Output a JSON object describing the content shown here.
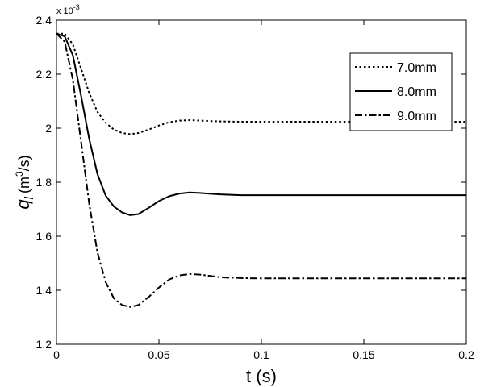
{
  "chart_data": {
    "type": "line",
    "xlabel": "t (s)",
    "ylabel_symbol": "q",
    "ylabel_sub": "l",
    "ylabel_unit_open": "(m",
    "ylabel_unit_sup": "3",
    "ylabel_unit_close": "/s)",
    "y_multiplier": "x 10",
    "y_multiplier_exp": "-3",
    "xlim": [
      0,
      0.2
    ],
    "ylim": [
      1.2,
      2.4
    ],
    "x_ticks": [
      0,
      0.05,
      0.1,
      0.15,
      0.2
    ],
    "x_tick_labels": [
      "0",
      "0.05",
      "0.1",
      "0.15",
      "0.2"
    ],
    "y_ticks": [
      1.2,
      1.4,
      1.6,
      1.8,
      2.0,
      2.2,
      2.4
    ],
    "y_tick_labels": [
      "1.2",
      "1.4",
      "1.6",
      "1.8",
      "2",
      "2.2",
      "2.4"
    ],
    "grid": false,
    "legend_position": "top-right",
    "series": [
      {
        "name": "7.0mm",
        "style": "dotted",
        "x": [
          0,
          0.004,
          0.008,
          0.012,
          0.016,
          0.02,
          0.024,
          0.028,
          0.032,
          0.036,
          0.04,
          0.045,
          0.05,
          0.055,
          0.06,
          0.065,
          0.07,
          0.08,
          0.09,
          0.1,
          0.12,
          0.15,
          0.18,
          0.2
        ],
        "y": [
          2.35,
          2.35,
          2.31,
          2.22,
          2.13,
          2.06,
          2.02,
          1.995,
          1.982,
          1.978,
          1.982,
          1.995,
          2.01,
          2.022,
          2.028,
          2.03,
          2.028,
          2.025,
          2.024,
          2.024,
          2.024,
          2.024,
          2.024,
          2.024
        ]
      },
      {
        "name": "8.0mm",
        "style": "solid",
        "x": [
          0,
          0.004,
          0.008,
          0.012,
          0.016,
          0.02,
          0.024,
          0.028,
          0.032,
          0.036,
          0.04,
          0.045,
          0.05,
          0.055,
          0.06,
          0.065,
          0.07,
          0.08,
          0.09,
          0.1,
          0.12,
          0.15,
          0.18,
          0.2
        ],
        "y": [
          2.35,
          2.34,
          2.27,
          2.12,
          1.96,
          1.83,
          1.75,
          1.71,
          1.688,
          1.678,
          1.682,
          1.705,
          1.73,
          1.748,
          1.758,
          1.762,
          1.76,
          1.755,
          1.752,
          1.752,
          1.752,
          1.752,
          1.752,
          1.752
        ]
      },
      {
        "name": "9.0mm",
        "style": "dashdot",
        "x": [
          0,
          0.004,
          0.008,
          0.012,
          0.016,
          0.02,
          0.024,
          0.028,
          0.032,
          0.036,
          0.04,
          0.045,
          0.05,
          0.055,
          0.06,
          0.065,
          0.07,
          0.08,
          0.09,
          0.1,
          0.12,
          0.15,
          0.18,
          0.2
        ],
        "y": [
          2.35,
          2.32,
          2.18,
          1.95,
          1.72,
          1.54,
          1.43,
          1.37,
          1.345,
          1.338,
          1.345,
          1.375,
          1.41,
          1.44,
          1.455,
          1.46,
          1.458,
          1.448,
          1.445,
          1.444,
          1.444,
          1.444,
          1.444,
          1.444
        ]
      }
    ]
  },
  "colors": {
    "axis": "#000000",
    "background": "#ffffff",
    "line": "#000000"
  }
}
